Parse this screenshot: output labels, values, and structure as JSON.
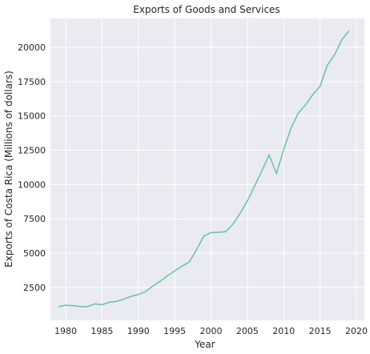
{
  "chart_data": {
    "type": "line",
    "title": "Exports of Goods and Services",
    "xlabel": "Year",
    "ylabel": "Exports of Costa Rica (Millions of dollars)",
    "xlim": [
      1977.9,
      2021.1
    ],
    "ylim": [
      100,
      22100
    ],
    "xticks": [
      1980,
      1985,
      1990,
      1995,
      2000,
      2005,
      2010,
      2015,
      2020
    ],
    "yticks": [
      2500,
      5000,
      7500,
      10000,
      12500,
      15000,
      17500,
      20000
    ],
    "grid": true,
    "background": "#eaeaf2",
    "line_color": "#66c2a5",
    "series": [
      {
        "x": [
          1979,
          1980,
          1981,
          1982,
          1983,
          1984,
          1985,
          1986,
          1987,
          1988,
          1989,
          1990,
          1991,
          1992,
          1993,
          1994,
          1995,
          1996,
          1997,
          1998,
          1999,
          2000,
          2001,
          2002,
          2003,
          2004,
          2005,
          2006,
          2007,
          2008,
          2009,
          2010,
          2011,
          2012,
          2013,
          2014,
          2015,
          2016,
          2017,
          2018,
          2019
        ],
        "values": [
          1100,
          1200,
          1170,
          1100,
          1110,
          1300,
          1240,
          1420,
          1480,
          1650,
          1850,
          1980,
          2200,
          2600,
          2950,
          3350,
          3700,
          4050,
          4350,
          5250,
          6230,
          6500,
          6520,
          6560,
          7100,
          7900,
          8800,
          9900,
          11000,
          12150,
          10800,
          12550,
          14100,
          15200,
          15800,
          16550,
          17150,
          18700,
          19450,
          20550,
          21200
        ]
      }
    ]
  }
}
